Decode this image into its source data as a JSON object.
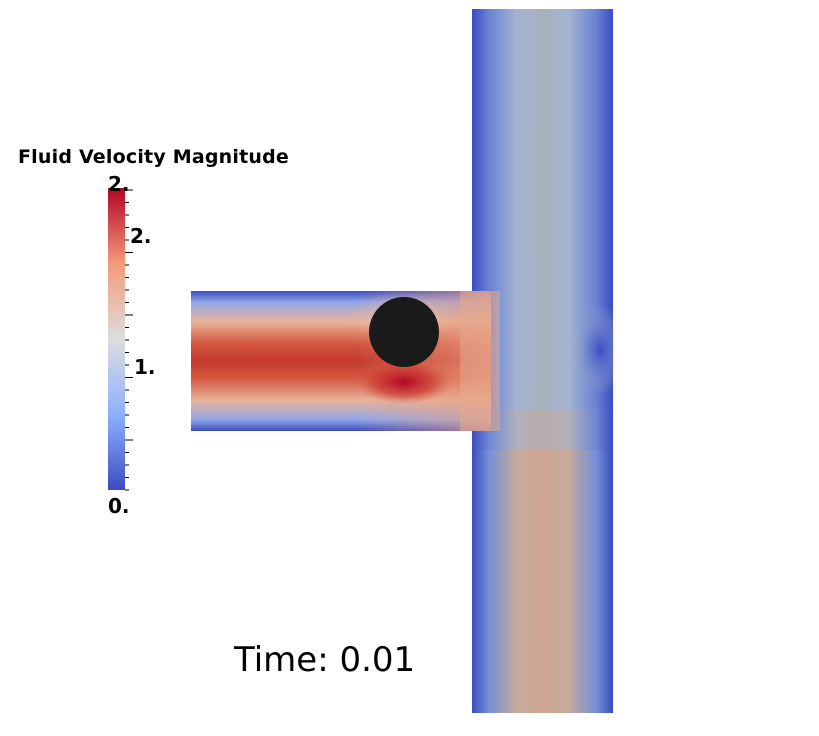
{
  "legend": {
    "title": "Fluid Velocity Magnitude",
    "labels": {
      "top": "2.",
      "upper": "2.",
      "mid": "1.",
      "bottom": "0."
    },
    "colors": {
      "low": "#3b4cc0",
      "mid": "#dddddd",
      "high": "#b40426"
    }
  },
  "time_text": "Time: 0.01",
  "obstacle_color": "#1a1a1a",
  "background_color": "#ffffff"
}
